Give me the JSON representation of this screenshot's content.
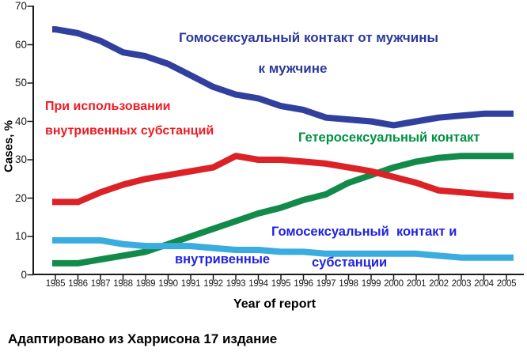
{
  "chart_data": {
    "type": "line",
    "title": "",
    "xlabel": "Year of report",
    "ylabel": "Cases, %",
    "x": [
      1985,
      1986,
      1987,
      1988,
      1989,
      1990,
      1991,
      1992,
      1993,
      1994,
      1995,
      1996,
      1997,
      1998,
      1999,
      2000,
      2001,
      2002,
      2003,
      2004,
      2005
    ],
    "ylim": [
      0,
      70
    ],
    "y_ticks": [
      0,
      10,
      20,
      30,
      40,
      50,
      60,
      70
    ],
    "grid": false,
    "legend_position": "inline-annotations",
    "series": [
      {
        "id": "msm",
        "name": "Гомосексуальный контакт от мужчины к мужчине",
        "color": "#31409e",
        "values": [
          64,
          63,
          61,
          58,
          57,
          55,
          52,
          49,
          47,
          46,
          44,
          43,
          41,
          40.5,
          40,
          39,
          40,
          41,
          41.5,
          42,
          42
        ]
      },
      {
        "id": "hetero",
        "name": "Гетеросексуальный контакт",
        "color": "#128b4a",
        "values": [
          3,
          3,
          4,
          5,
          6,
          8,
          10,
          12,
          14,
          16,
          17.5,
          19.5,
          21,
          24,
          26,
          28,
          29.5,
          30.5,
          31,
          31,
          31
        ]
      },
      {
        "id": "idu",
        "name": "При использовании внутривенных субстанций",
        "color": "#dc2127",
        "values": [
          19,
          19,
          21.5,
          23.5,
          25,
          26,
          27,
          28,
          31,
          30,
          30,
          29.5,
          29,
          28,
          27,
          25.5,
          24,
          22,
          21.5,
          21,
          20.5
        ]
      },
      {
        "id": "msm-idu",
        "name": "Гомосексуальный контакт и внутривенные субстанции",
        "color": "#3aace0",
        "values": [
          9,
          9,
          9,
          8,
          7.5,
          7.5,
          7.5,
          7,
          6.5,
          6.5,
          6,
          6,
          5.5,
          5.5,
          5.5,
          5.5,
          5.5,
          5,
          4.5,
          4.5,
          4.5
        ]
      }
    ]
  },
  "axis": {
    "xlabel": "Year of report",
    "ylabel": "Cases, %"
  },
  "annotations": {
    "msm_line1": "Гомосексуальный контакт от мужчины",
    "msm_line2": "к мужчине",
    "idu_line1": "При использовании",
    "idu_line2": "внутривенных субстанций",
    "hetero": "Гетеросексуальный контакт",
    "msm_idu_line1": "Гомосексуальный  контакт и",
    "msm_idu_line2": "внутривенные",
    "msm_idu_line3": "субстанции"
  },
  "caption": "Адаптировано из Харрисона 17 издание",
  "colors": {
    "background": "#ffffff",
    "axis": "#1a1a1a",
    "msm_line": "#31409e",
    "msm_text": "#2b389b",
    "idu_line": "#dc2127",
    "idu_text": "#ee1b24",
    "hetero_line": "#128b4a",
    "hetero_text": "#009144",
    "msm_idu_line": "#3aace0",
    "msm_idu_text": "#2222e2"
  }
}
